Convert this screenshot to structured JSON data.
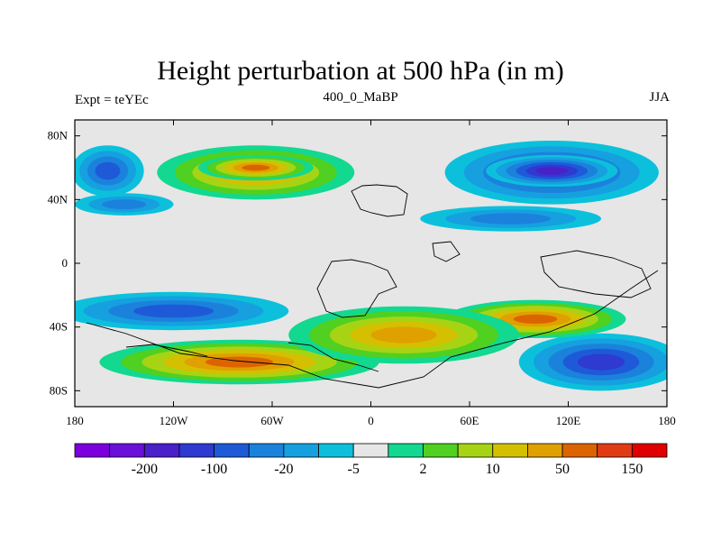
{
  "chart_data": {
    "type": "heatmap",
    "title": "Height perturbation at 500 hPa (in m)",
    "left_subtitle": "Expt = teYEc",
    "center_subtitle": "400_0_MaBP",
    "right_subtitle": "JJA",
    "x_range": [
      -180,
      180
    ],
    "y_range": [
      -90,
      90
    ],
    "x_ticks": [
      {
        "value": -180,
        "label": "180"
      },
      {
        "value": -120,
        "label": "120W"
      },
      {
        "value": -60,
        "label": "60W"
      },
      {
        "value": 0,
        "label": "0"
      },
      {
        "value": 60,
        "label": "60E"
      },
      {
        "value": 120,
        "label": "120E"
      },
      {
        "value": 180,
        "label": "180"
      }
    ],
    "y_ticks": [
      {
        "value": 80,
        "label": "80N"
      },
      {
        "value": 40,
        "label": "40N"
      },
      {
        "value": 0,
        "label": "0"
      },
      {
        "value": -40,
        "label": "40S"
      },
      {
        "value": -80,
        "label": "80S"
      }
    ],
    "colorbar": {
      "colors": [
        "#7b00dd",
        "#6a10d8",
        "#4a20c8",
        "#2e3ad0",
        "#1e5ad8",
        "#1b82dc",
        "#16a0e0",
        "#0cc0dc",
        "#e6e6e6",
        "#12d890",
        "#50d020",
        "#a6d414",
        "#d4c000",
        "#e0a000",
        "#dc6400",
        "#e03c14",
        "#e00000"
      ],
      "labels": [
        {
          "boundary": 2,
          "label": "-200"
        },
        {
          "boundary": 4,
          "label": "-100"
        },
        {
          "boundary": 6,
          "label": "-20"
        },
        {
          "boundary": 8,
          "label": "-5"
        },
        {
          "boundary": 10,
          "label": "2"
        },
        {
          "boundary": 12,
          "label": "10"
        },
        {
          "boundary": 14,
          "label": "50"
        },
        {
          "boundary": 16,
          "label": "150"
        }
      ]
    },
    "regions": [
      {
        "name": "north-pacific-low",
        "cx": -160,
        "cy": 58,
        "rx": 22,
        "ry": 16,
        "level": 4
      },
      {
        "name": "north-america-high",
        "cx": -70,
        "cy": 57,
        "rx": 60,
        "ry": 17,
        "level": 13
      },
      {
        "name": "north-america-high-core",
        "cx": -70,
        "cy": 60,
        "rx": 35,
        "ry": 8,
        "level": 14
      },
      {
        "name": "north-atlantic-low",
        "cx": -150,
        "cy": 37,
        "rx": 30,
        "ry": 7,
        "level": 5
      },
      {
        "name": "eurasia-low",
        "cx": 110,
        "cy": 57,
        "rx": 65,
        "ry": 20,
        "level": 3
      },
      {
        "name": "eurasia-low-core",
        "cx": 110,
        "cy": 58,
        "rx": 40,
        "ry": 10,
        "level": 2
      },
      {
        "name": "central-asia-low",
        "cx": 85,
        "cy": 28,
        "rx": 55,
        "ry": 8,
        "level": 5
      },
      {
        "name": "southern-trough",
        "cx": -120,
        "cy": -30,
        "rx": 70,
        "ry": 12,
        "level": 4
      },
      {
        "name": "south-pacific-low",
        "cx": 140,
        "cy": -62,
        "rx": 50,
        "ry": 18,
        "level": 3
      },
      {
        "name": "southern-high-west",
        "cx": -80,
        "cy": -62,
        "rx": 85,
        "ry": 14,
        "level": 14
      },
      {
        "name": "southern-high-east",
        "cx": 100,
        "cy": -35,
        "rx": 55,
        "ry": 12,
        "level": 14
      },
      {
        "name": "southern-high-center",
        "cx": 20,
        "cy": -45,
        "rx": 70,
        "ry": 18,
        "level": 13
      }
    ]
  }
}
